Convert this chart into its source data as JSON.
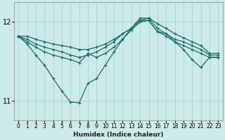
{
  "xlabel": "Humidex (Indice chaleur)",
  "ylabel": "",
  "bg_color": "#cceae7",
  "grid_color": "#aad4d0",
  "line_color": "#1a6e6a",
  "xlim": [
    -0.5,
    23.5
  ],
  "ylim": [
    10.75,
    12.25
  ],
  "yticks": [
    11,
    12
  ],
  "xticks": [
    0,
    1,
    2,
    3,
    4,
    5,
    6,
    7,
    8,
    9,
    10,
    11,
    12,
    13,
    14,
    15,
    16,
    17,
    18,
    19,
    20,
    21,
    22,
    23
  ],
  "series": [
    {
      "x": [
        0,
        1,
        2,
        3,
        4,
        5,
        6,
        7,
        8,
        9,
        10,
        11,
        12,
        13,
        14,
        15,
        16,
        17,
        18,
        19,
        20,
        21,
        22,
        23
      ],
      "y": [
        11.82,
        11.82,
        11.78,
        11.75,
        11.72,
        11.7,
        11.68,
        11.65,
        11.65,
        11.68,
        11.72,
        11.78,
        11.85,
        11.92,
        12.05,
        12.05,
        11.98,
        11.92,
        11.85,
        11.8,
        11.75,
        11.7,
        11.6,
        11.6
      ]
    },
    {
      "x": [
        0,
        1,
        2,
        3,
        4,
        5,
        6,
        7,
        8,
        9,
        10,
        11,
        12,
        13,
        14,
        15,
        16,
        17,
        18,
        19,
        20,
        21,
        22,
        23
      ],
      "y": [
        11.82,
        11.78,
        11.72,
        11.68,
        11.65,
        11.62,
        11.58,
        11.55,
        11.58,
        11.62,
        11.68,
        11.75,
        11.85,
        11.92,
        12.02,
        12.05,
        11.92,
        11.85,
        11.78,
        11.75,
        11.7,
        11.65,
        11.58,
        11.58
      ]
    },
    {
      "x": [
        0,
        1,
        2,
        3,
        4,
        5,
        6,
        7,
        8,
        9,
        10,
        11,
        12,
        13,
        14,
        15,
        16,
        17,
        18,
        19,
        20,
        21,
        22,
        23
      ],
      "y": [
        11.82,
        11.75,
        11.68,
        11.62,
        11.58,
        11.55,
        11.52,
        11.48,
        11.6,
        11.55,
        11.6,
        11.68,
        11.78,
        11.9,
        12.0,
        12.02,
        11.88,
        11.82,
        11.75,
        11.7,
        11.65,
        11.6,
        11.55,
        11.55
      ]
    },
    {
      "x": [
        0,
        1,
        2,
        3,
        4,
        5,
        6,
        7,
        8,
        9,
        10,
        11,
        12,
        13,
        14,
        15,
        16,
        17,
        18,
        19,
        20,
        21,
        22,
        23
      ],
      "y": [
        11.82,
        11.72,
        11.58,
        11.45,
        11.28,
        11.12,
        10.98,
        10.97,
        11.22,
        11.28,
        11.45,
        11.62,
        11.78,
        11.92,
        12.02,
        12.02,
        11.88,
        11.85,
        11.75,
        11.65,
        11.52,
        11.42,
        11.55,
        11.55
      ]
    }
  ]
}
